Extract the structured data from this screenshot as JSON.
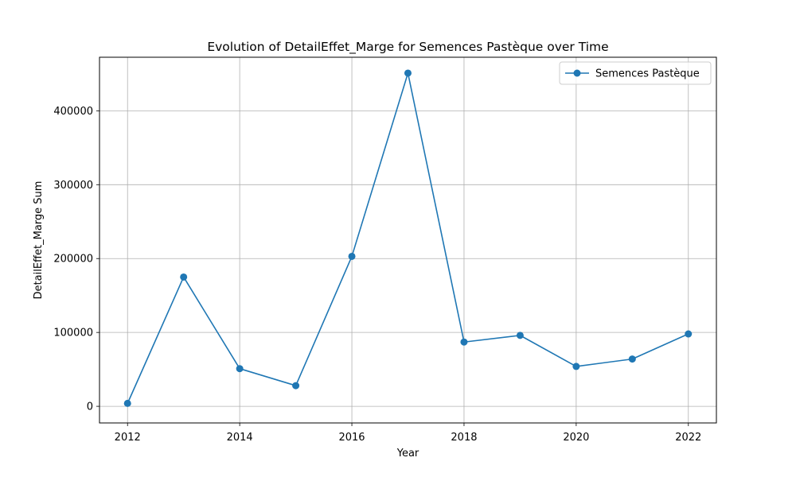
{
  "chart_data": {
    "type": "line",
    "title": "Evolution of DetailEffet_Marge for Semences Pastèque over Time",
    "xlabel": "Year",
    "ylabel": "DetailEffet_Marge Sum",
    "x": [
      2012,
      2013,
      2014,
      2015,
      2016,
      2017,
      2018,
      2019,
      2020,
      2021,
      2022
    ],
    "series": [
      {
        "name": "Semences Pastèque",
        "color": "#1f77b4",
        "marker": "circle",
        "values": [
          4000,
          175000,
          51000,
          28000,
          203000,
          451000,
          87000,
          96000,
          54000,
          64000,
          98000
        ]
      }
    ],
    "xlim": [
      2011.5,
      2022.5
    ],
    "ylim": [
      -22500,
      472500
    ],
    "xticks": [
      2012,
      2014,
      2016,
      2018,
      2020,
      2022
    ],
    "xtick_labels": [
      "2012",
      "2014",
      "2016",
      "2018",
      "2020",
      "2022"
    ],
    "yticks": [
      0,
      100000,
      200000,
      300000,
      400000
    ],
    "ytick_labels": [
      "0",
      "100000",
      "200000",
      "300000",
      "400000"
    ],
    "grid": true,
    "legend_position": "top-right"
  }
}
